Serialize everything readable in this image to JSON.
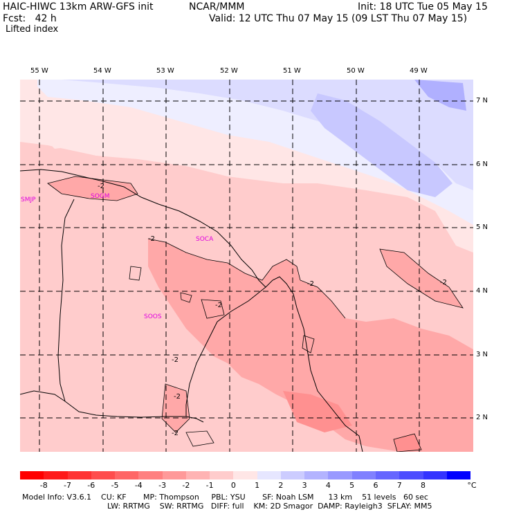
{
  "header": {
    "title": "HAIC-HIWC 13km ARW-GFS init",
    "org": "NCAR/MMM",
    "init": "Init: 18 UTC Tue 05 May 15",
    "fcst": "Fcst:   42 h",
    "valid": "Valid: 12 UTC Thu 07 May 15 (09 LST Thu 07 May 15)",
    "field": "Lifted index"
  },
  "map": {
    "lon_labels": [
      "55 W",
      "54 W",
      "53 W",
      "52 W",
      "51 W",
      "50 W",
      "49 W"
    ],
    "lat_labels": [
      "7 N",
      "6 N",
      "5 N",
      "4 N",
      "3 N",
      "2 N"
    ],
    "stations": [
      "SMJP",
      "SOGM",
      "SOCA",
      "SOOS"
    ],
    "contour_labels": [
      "-2",
      "-2",
      "-2",
      "-2",
      "-2",
      "-2",
      "-2",
      "-2"
    ]
  },
  "legend": {
    "unit": "°C",
    "labels": [
      "-8",
      "-7",
      "-6",
      "-5",
      "-4",
      "-3",
      "-2",
      "-1",
      "0",
      "1",
      "2",
      "3",
      "4",
      "5",
      "6",
      "7",
      "8"
    ],
    "colors": [
      "#ff0000",
      "#ff1a1a",
      "#ff3333",
      "#ff4d4d",
      "#ff6666",
      "#ff8080",
      "#ff9999",
      "#ffb3b3",
      "#ffcccc",
      "#ffe6e6",
      "#e6e6ff",
      "#ccccff",
      "#b3b3ff",
      "#9999ff",
      "#8080ff",
      "#6666ff",
      "#4d4dff",
      "#3333ff",
      "#0000ff"
    ]
  },
  "model_info": {
    "line1": "Model Info: V3.6.1    CU: KF       MP: Thompson     PBL: YSU       SF: Noah LSM      13 km    51 levels   60 sec",
    "line2": "LW: RRTMG    SW: RRTMG   DIFF: full    KM: 2D Smagor  DAMP: Rayleigh3  SFLAY: MM5"
  }
}
